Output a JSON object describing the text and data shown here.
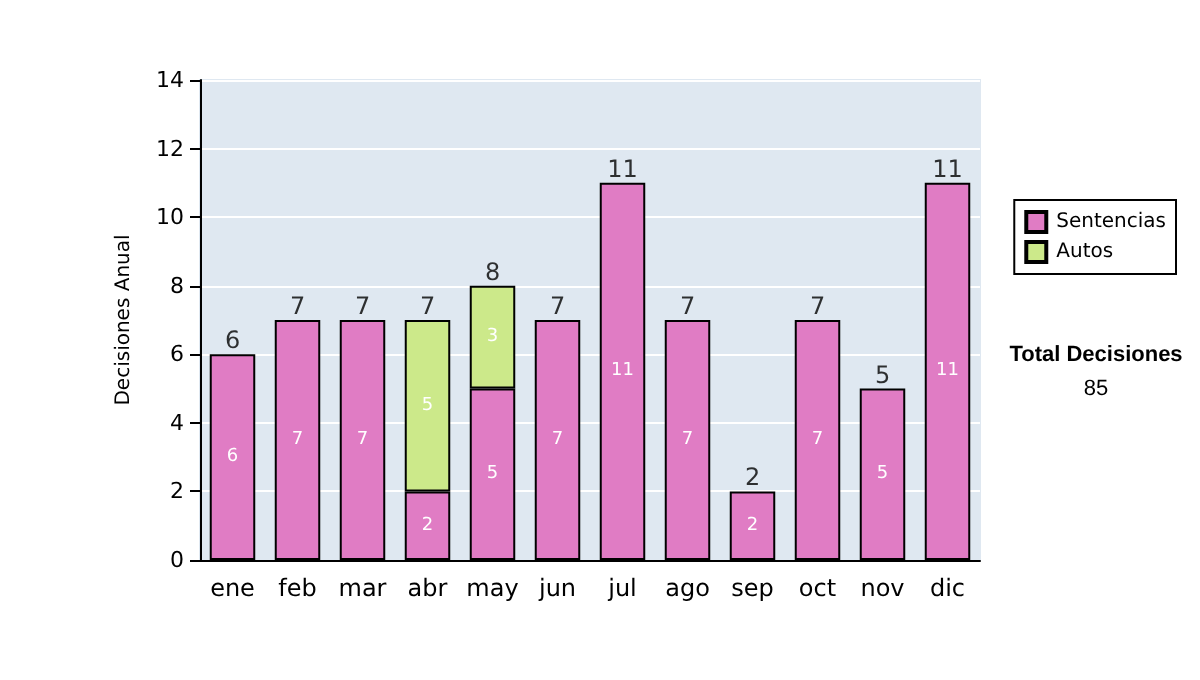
{
  "chart_data": {
    "type": "bar",
    "stacked": true,
    "ylabel": "Decisiones Anual",
    "categories": [
      "ene",
      "feb",
      "mar",
      "abr",
      "may",
      "jun",
      "jul",
      "ago",
      "sep",
      "oct",
      "nov",
      "dic"
    ],
    "series": [
      {
        "name": "Sentencias",
        "color": "#e07cc4",
        "values": [
          6,
          7,
          7,
          2,
          5,
          7,
          11,
          7,
          2,
          7,
          5,
          11
        ]
      },
      {
        "name": "Autos",
        "color": "#cce98a",
        "values": [
          null,
          null,
          null,
          5,
          3,
          null,
          null,
          null,
          null,
          null,
          null,
          null
        ]
      }
    ],
    "totals": [
      "6",
      "7",
      "7",
      "7",
      "8",
      "7",
      "11",
      "7",
      "2",
      "7",
      "5",
      "11"
    ],
    "data_labels": true,
    "ylim": [
      0,
      14
    ],
    "yticks": [
      0,
      2,
      4,
      6,
      8,
      10,
      12,
      14
    ],
    "grid": "y",
    "legend": "right",
    "annotations": [
      "Total Decisiones",
      "85"
    ]
  }
}
